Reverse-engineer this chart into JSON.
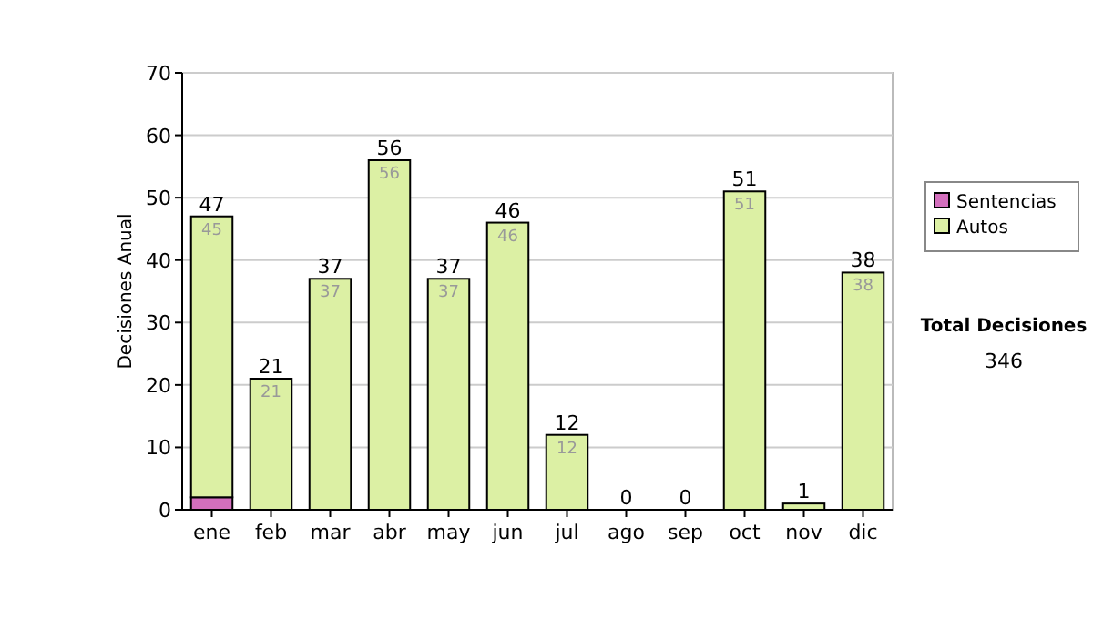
{
  "chart_data": {
    "type": "bar",
    "stacked": true,
    "ylabel": "Decisiones Anual",
    "categories": [
      "ene",
      "feb",
      "mar",
      "abr",
      "may",
      "jun",
      "jul",
      "ago",
      "sep",
      "oct",
      "nov",
      "dic"
    ],
    "series": [
      {
        "name": "Sentencias",
        "color": "#d36fbd",
        "values": [
          2,
          0,
          0,
          0,
          0,
          0,
          0,
          0,
          0,
          0,
          0,
          0
        ]
      },
      {
        "name": "Autos",
        "color": "#dcf0a4",
        "values": [
          45,
          21,
          37,
          56,
          37,
          46,
          12,
          0,
          0,
          51,
          1,
          38
        ],
        "value_labels": [
          "45",
          "21",
          "37",
          "56",
          "37",
          "46",
          "12",
          null,
          null,
          "51",
          null,
          "38"
        ]
      }
    ],
    "totals": [
      "47",
      "21",
      "37",
      "56",
      "37",
      "46",
      "12",
      "0",
      "0",
      "51",
      "1",
      "38"
    ],
    "ylim": [
      0,
      70
    ],
    "yticks": [
      0,
      10,
      20,
      30,
      40,
      50,
      60,
      70
    ],
    "grid": "y",
    "legend": "right",
    "annotations": [
      "Total Decisiones",
      "346"
    ]
  }
}
